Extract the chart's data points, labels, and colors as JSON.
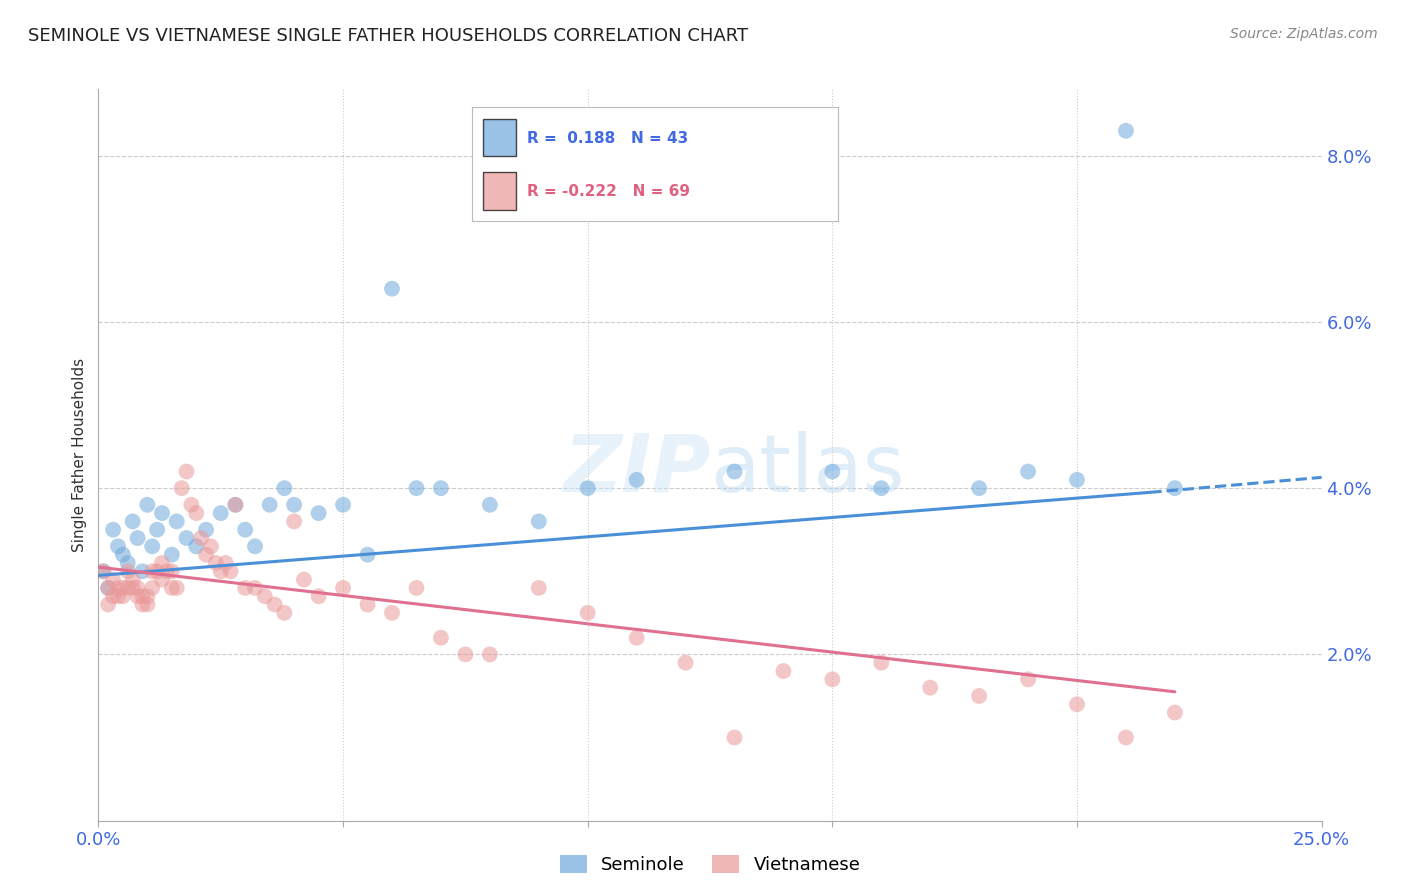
{
  "title": "SEMINOLE VS VIETNAMESE SINGLE FATHER HOUSEHOLDS CORRELATION CHART",
  "source": "Source: ZipAtlas.com",
  "ylabel": "Single Father Households",
  "xlim": [
    0.0,
    0.25
  ],
  "ylim": [
    0.0,
    0.088
  ],
  "watermark": "ZIPatlas",
  "seminole_color": "#6fa8dc",
  "vietnamese_color": "#ea9999",
  "trend_seminole_color": "#4a90d9",
  "trend_vietnamese_color": "#e07090",
  "seminole_x": [
    0.001,
    0.002,
    0.003,
    0.004,
    0.005,
    0.006,
    0.007,
    0.008,
    0.009,
    0.01,
    0.011,
    0.012,
    0.013,
    0.015,
    0.016,
    0.018,
    0.02,
    0.022,
    0.025,
    0.028,
    0.03,
    0.032,
    0.035,
    0.038,
    0.04,
    0.045,
    0.05,
    0.055,
    0.06,
    0.065,
    0.07,
    0.08,
    0.09,
    0.1,
    0.11,
    0.13,
    0.15,
    0.16,
    0.18,
    0.19,
    0.2,
    0.21,
    0.22
  ],
  "seminole_y": [
    0.03,
    0.028,
    0.035,
    0.033,
    0.032,
    0.031,
    0.036,
    0.034,
    0.03,
    0.038,
    0.033,
    0.035,
    0.037,
    0.032,
    0.036,
    0.034,
    0.033,
    0.035,
    0.037,
    0.038,
    0.035,
    0.033,
    0.038,
    0.04,
    0.038,
    0.037,
    0.038,
    0.032,
    0.064,
    0.04,
    0.04,
    0.038,
    0.036,
    0.04,
    0.041,
    0.042,
    0.042,
    0.04,
    0.04,
    0.042,
    0.041,
    0.083,
    0.04
  ],
  "vietnamese_x": [
    0.001,
    0.002,
    0.002,
    0.003,
    0.003,
    0.004,
    0.004,
    0.005,
    0.005,
    0.006,
    0.006,
    0.007,
    0.007,
    0.008,
    0.008,
    0.009,
    0.009,
    0.01,
    0.01,
    0.011,
    0.011,
    0.012,
    0.013,
    0.013,
    0.014,
    0.015,
    0.015,
    0.016,
    0.017,
    0.018,
    0.019,
    0.02,
    0.021,
    0.022,
    0.023,
    0.024,
    0.025,
    0.026,
    0.027,
    0.028,
    0.03,
    0.032,
    0.034,
    0.036,
    0.038,
    0.04,
    0.042,
    0.045,
    0.05,
    0.055,
    0.06,
    0.065,
    0.07,
    0.075,
    0.08,
    0.09,
    0.1,
    0.11,
    0.12,
    0.13,
    0.14,
    0.15,
    0.16,
    0.17,
    0.18,
    0.19,
    0.2,
    0.21,
    0.22
  ],
  "vietnamese_y": [
    0.03,
    0.028,
    0.026,
    0.029,
    0.027,
    0.028,
    0.027,
    0.028,
    0.027,
    0.03,
    0.028,
    0.029,
    0.028,
    0.028,
    0.027,
    0.027,
    0.026,
    0.027,
    0.026,
    0.03,
    0.028,
    0.03,
    0.031,
    0.029,
    0.03,
    0.03,
    0.028,
    0.028,
    0.04,
    0.042,
    0.038,
    0.037,
    0.034,
    0.032,
    0.033,
    0.031,
    0.03,
    0.031,
    0.03,
    0.038,
    0.028,
    0.028,
    0.027,
    0.026,
    0.025,
    0.036,
    0.029,
    0.027,
    0.028,
    0.026,
    0.025,
    0.028,
    0.022,
    0.02,
    0.02,
    0.028,
    0.025,
    0.022,
    0.019,
    0.01,
    0.018,
    0.017,
    0.019,
    0.016,
    0.015,
    0.017,
    0.014,
    0.01,
    0.013
  ],
  "trend_s_x0": 0.0,
  "trend_s_y0": 0.0295,
  "trend_s_x1": 0.215,
  "trend_s_y1": 0.0395,
  "trend_s_dash_x0": 0.215,
  "trend_s_dash_y0": 0.0395,
  "trend_s_dash_x1": 0.25,
  "trend_s_dash_y1": 0.0413,
  "trend_v_x0": 0.0,
  "trend_v_y0": 0.0305,
  "trend_v_x1": 0.22,
  "trend_v_y1": 0.0155
}
